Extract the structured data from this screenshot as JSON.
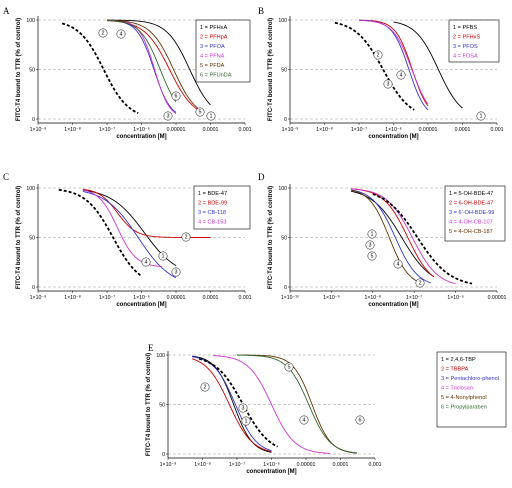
{
  "chart_data": [
    {
      "panel": "A",
      "type": "line",
      "ylabel": "FITC-T4 bound to TTR (% of control)",
      "xlabel": "concentration [M]",
      "xscale": "log",
      "xlim": [
        1e-09,
        0.001
      ],
      "ylim": [
        0,
        100
      ],
      "xticks": [
        1e-09,
        1e-08,
        1e-07,
        1e-06,
        1e-05,
        0.0001,
        0.001
      ],
      "xtick_labels": [
        "1×10⁻⁹",
        "1×10⁻⁸",
        "1×10⁻⁷",
        "1×10⁻⁶",
        "0.00001",
        "0.0001",
        "0.001"
      ],
      "yticks": [
        0,
        50,
        100
      ],
      "reference_lines_y": [
        0,
        50,
        100
      ],
      "legend_position": "top-right",
      "series": [
        {
          "name": "1 = PFHxA",
          "marker": "1",
          "color": "#000000",
          "bottom": 0,
          "ic50": 2.5e-05,
          "hill": 1.3,
          "x_start": 1e-07,
          "x_end": 0.0001
        },
        {
          "name": "2 = PFHpA",
          "marker": "2",
          "color": "#cc0000",
          "bottom": 0,
          "ic50": 6.5e-06,
          "hill": 1.2,
          "x_start": 1e-07,
          "x_end": 5e-05
        },
        {
          "name": "3 = PFOA",
          "marker": "3",
          "color": "#3333cc",
          "bottom": 0,
          "ic50": 2.3e-06,
          "hill": 1.8,
          "x_start": 1e-07,
          "x_end": 1e-05
        },
        {
          "name": "4 = PFNA",
          "marker": "4",
          "color": "#cc33cc",
          "bottom": 0,
          "ic50": 2.4e-06,
          "hill": 2.0,
          "x_start": 1e-07,
          "x_end": 1e-05
        },
        {
          "name": "5 = PFDA",
          "marker": "5",
          "color": "#663300",
          "bottom": 0,
          "ic50": 8.5e-06,
          "hill": 1.3,
          "x_start": 1e-07,
          "x_end": 5e-05
        },
        {
          "name": "6 = PFUnDA",
          "marker": "6",
          "color": "#336633",
          "bottom": 0,
          "ic50": 3.5e-06,
          "hill": 1.5,
          "x_start": 1e-07,
          "x_end": 1e-05
        },
        {
          "name": "",
          "marker": "",
          "color": "#000000",
          "dashed": true,
          "bottom": 0,
          "ic50": 8e-08,
          "hill": 1.2,
          "x_start": 5e-09,
          "x_end": 8e-07
        }
      ]
    },
    {
      "panel": "B",
      "type": "line",
      "ylabel": "FITC-T4 bound to TTR (% of control)",
      "xlabel": "concentration [M]",
      "xscale": "log",
      "xlim": [
        1e-09,
        0.001
      ],
      "ylim": [
        0,
        100
      ],
      "xticks": [
        1e-09,
        1e-08,
        1e-07,
        1e-06,
        1e-05,
        0.0001,
        0.001
      ],
      "xtick_labels": [
        "1×10⁻⁹",
        "1×10⁻⁸",
        "1×10⁻⁷",
        "1×10⁻⁶",
        "0.00001",
        "0.0001",
        "0.001"
      ],
      "yticks": [
        0,
        50,
        100
      ],
      "reference_lines_y": [
        0,
        50,
        100
      ],
      "legend_position": "top-right",
      "series": [
        {
          "name": "1 = PFBS",
          "marker": "1",
          "color": "#000000",
          "bottom": 0,
          "ic50": 2e-05,
          "hill": 1.3,
          "x_start": 1e-06,
          "x_end": 0.0001
        },
        {
          "name": "2 = PFHxS",
          "marker": "2",
          "color": "#cc0000",
          "bottom": 0,
          "ic50": 3.5e-06,
          "hill": 1.8,
          "x_start": 1e-07,
          "x_end": 1e-05
        },
        {
          "name": "3 = PFOS",
          "marker": "3",
          "color": "#3333cc",
          "bottom": 0,
          "ic50": 2.8e-06,
          "hill": 1.8,
          "x_start": 1e-07,
          "x_end": 1e-05
        },
        {
          "name": "4 = FOSA",
          "marker": "4",
          "color": "#cc33cc",
          "bottom": 0,
          "ic50": 3.4e-06,
          "hill": 1.6,
          "x_start": 1e-07,
          "x_end": 1e-05
        },
        {
          "name": "",
          "marker": "",
          "color": "#000000",
          "dashed": true,
          "bottom": 0,
          "ic50": 5e-07,
          "hill": 1.1,
          "x_start": 2e-08,
          "x_end": 4e-06
        }
      ]
    },
    {
      "panel": "C",
      "type": "line",
      "ylabel": "FITC-T4 bound to TTR (% of control)",
      "xlabel": "concentration [M]",
      "xscale": "log",
      "xlim": [
        1e-09,
        0.001
      ],
      "ylim": [
        0,
        100
      ],
      "xticks": [
        1e-09,
        1e-08,
        1e-07,
        1e-06,
        1e-05,
        0.0001,
        0.001
      ],
      "xtick_labels": [
        "1×10⁻⁹",
        "1×10⁻⁸",
        "1×10⁻⁷",
        "1×10⁻⁶",
        "0.00001",
        "0.0001",
        "0.001"
      ],
      "yticks": [
        0,
        50,
        100
      ],
      "reference_lines_y": [
        0,
        50,
        100
      ],
      "legend_position": "top-right",
      "series": [
        {
          "name": "1 = BDE-47",
          "marker": "1",
          "color": "#000000",
          "bottom": 10,
          "ic50": 1.2e-06,
          "hill": 0.9,
          "x_start": 2e-08,
          "x_end": 1e-05
        },
        {
          "name": "2 = BDE-99",
          "marker": "2",
          "color": "#cc0000",
          "bottom": 50,
          "ic50": 2e-07,
          "hill": 1.6,
          "x_start": 2e-08,
          "x_end": 0.0001
        },
        {
          "name": "3 = CB-118",
          "marker": "3",
          "color": "#3333cc",
          "bottom": 0,
          "ic50": 8e-07,
          "hill": 0.9,
          "x_start": 2e-08,
          "x_end": 1e-05
        },
        {
          "name": "4 = CB-153",
          "marker": "4",
          "color": "#cc33cc",
          "bottom": 20,
          "ic50": 2e-07,
          "hill": 1.6,
          "x_start": 2e-08,
          "x_end": 4e-06
        },
        {
          "name": "",
          "marker": "",
          "color": "#000000",
          "dashed": true,
          "bottom": 0,
          "ic50": 1.5e-07,
          "hill": 1.1,
          "x_start": 4e-09,
          "x_end": 1e-06
        }
      ]
    },
    {
      "panel": "D",
      "type": "line",
      "ylabel": "FITC-T4 bound to TTR (% of control)",
      "xlabel": "concentration [M]",
      "xscale": "log",
      "xlim": [
        1e-10,
        1e-05
      ],
      "ylim": [
        0,
        100
      ],
      "xticks": [
        1e-10,
        1e-09,
        1e-08,
        1e-07,
        1e-06,
        1e-05
      ],
      "xtick_labels": [
        "1×10⁻¹⁰",
        "1×10⁻⁹",
        "1×10⁻⁸",
        "1×10⁻⁷",
        "1×10⁻⁶",
        "0.00001"
      ],
      "yticks": [
        0,
        50,
        100
      ],
      "reference_lines_y": [
        0,
        50,
        100
      ],
      "legend_position": "top-right",
      "series": [
        {
          "name": "1 = 5-OH-BDE-47",
          "marker": "1",
          "color": "#000000",
          "bottom": 0,
          "ic50": 5e-08,
          "hill": 1.2,
          "x_start": 3e-09,
          "x_end": 3e-07
        },
        {
          "name": "2 = 6-OH-BDE-47",
          "marker": "2",
          "color": "#cc0000",
          "bottom": 0,
          "ic50": 7e-08,
          "hill": 1.5,
          "x_start": 3e-09,
          "x_end": 3e-07
        },
        {
          "name": "3 = 6'-OH-BDE-99",
          "marker": "3",
          "color": "#3333cc",
          "bottom": 0,
          "ic50": 3.5e-08,
          "hill": 1.6,
          "x_start": 3e-09,
          "x_end": 2.5e-07
        },
        {
          "name": "4 = 4-OH-CB-107",
          "marker": "4",
          "color": "#cc33cc",
          "bottom": 0,
          "ic50": 9e-08,
          "hill": 1.4,
          "x_start": 3e-09,
          "x_end": 1e-06
        },
        {
          "name": "5 = 4-OH-CB-187",
          "marker": "5",
          "color": "#663300",
          "bottom": 0,
          "ic50": 2.5e-08,
          "hill": 1.8,
          "x_start": 3e-09,
          "x_end": 1.5e-07
        },
        {
          "name": "",
          "marker": "",
          "color": "#000000",
          "dashed": true,
          "bottom": 0,
          "ic50": 1.2e-07,
          "hill": 1.1,
          "x_start": 1e-08,
          "x_end": 2.5e-06
        }
      ]
    },
    {
      "panel": "E",
      "type": "line",
      "ylabel": "FITC-T4 bound to TTR (% of control)",
      "xlabel": "concentration [M]",
      "xscale": "log",
      "xlim": [
        1e-09,
        0.001
      ],
      "ylim": [
        0,
        100
      ],
      "xticks": [
        1e-09,
        1e-08,
        1e-07,
        1e-06,
        1e-05,
        0.0001,
        0.001
      ],
      "xtick_labels": [
        "1×10⁻⁹",
        "1×10⁻⁸",
        "1×10⁻⁷",
        "1×10⁻⁶",
        "0.00001",
        "0.0001",
        "0.001"
      ],
      "yticks": [
        0,
        50,
        100
      ],
      "reference_lines_y": [
        0,
        50,
        100
      ],
      "legend_position": "top-right",
      "series": [
        {
          "name": "1 = 2,4,6-TBP",
          "marker": "1",
          "color": "#000000",
          "bottom": 0,
          "ic50": 8e-08,
          "hill": 1.6,
          "x_start": 5e-09,
          "x_end": 1e-06
        },
        {
          "name": "2 = TBBPA",
          "marker": "2",
          "color": "#cc0000",
          "bottom": 0,
          "ic50": 6e-08,
          "hill": 1.3,
          "x_start": 5e-09,
          "x_end": 1e-06
        },
        {
          "name": "3 = Pentachloro-phenol",
          "marker": "3",
          "color": "#3333cc",
          "bottom": 0,
          "ic50": 9e-08,
          "hill": 1.4,
          "x_start": 5e-09,
          "x_end": 1e-06
        },
        {
          "name": "4 = Triclosan",
          "marker": "4",
          "color": "#cc33cc",
          "bottom": 0,
          "ic50": 1e-06,
          "hill": 1.3,
          "x_start": 2e-08,
          "x_end": 5e-05
        },
        {
          "name": "5 = 4-Nonylphenol",
          "marker": "5",
          "color": "#663300",
          "bottom": 0,
          "ic50": 1.5e-05,
          "hill": 1.6,
          "x_start": 1e-07,
          "x_end": 0.0003
        },
        {
          "name": "6 = Propylparaben",
          "marker": "6",
          "color": "#336633",
          "bottom": 0,
          "ic50": 1.2e-05,
          "hill": 1.4,
          "x_start": 1e-07,
          "x_end": 0.0003
        },
        {
          "name": "",
          "marker": "",
          "color": "#000000",
          "dashed": true,
          "bottom": 0,
          "ic50": 1.5e-07,
          "hill": 1.1,
          "x_start": 8e-09,
          "x_end": 1.5e-06
        }
      ]
    }
  ]
}
